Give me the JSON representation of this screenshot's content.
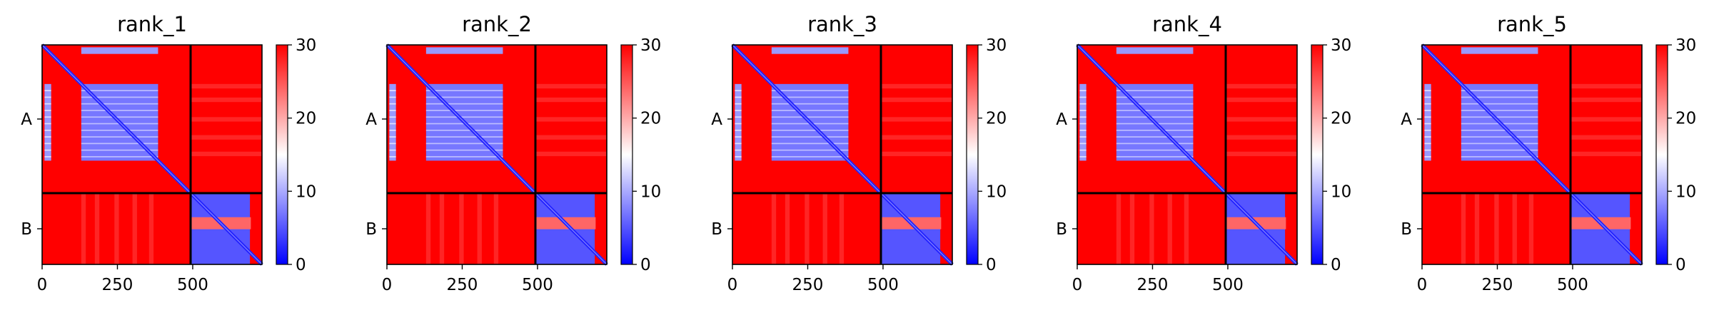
{
  "chart_data": {
    "type": "heatmap",
    "description_of_panels": "five predicted aligned error heatmaps",
    "colormap": {
      "low": "#0000ff",
      "mid": "#ffffff",
      "high": "#ff0000",
      "vmin": 0,
      "vmax": 30
    },
    "colorbar_ticks": [
      "0",
      "10",
      "20",
      "30"
    ],
    "x_ticks": [
      0,
      250,
      500
    ],
    "x_tick_labels": [
      "0",
      "250",
      "500"
    ],
    "chain_labels": [
      "A",
      "B"
    ],
    "chain_lengths": {
      "A": 493,
      "B": 237
    },
    "total_length": 730,
    "panels": [
      {
        "title": "rank_1"
      },
      {
        "title": "rank_2"
      },
      {
        "title": "rank_3"
      },
      {
        "title": "rank_4"
      },
      {
        "title": "rank_5"
      }
    ],
    "pattern": {
      "low_error_blocks": [
        {
          "rows": [
            0,
            493
          ],
          "cols": [
            0,
            493
          ],
          "note": "diagonal"
        },
        {
          "rows": [
            130,
            385
          ],
          "cols": [
            130,
            385
          ],
          "value": 6
        },
        {
          "rows": [
            0,
            30
          ],
          "cols": [
            130,
            385
          ],
          "value": 9
        },
        {
          "rows": [
            130,
            385
          ],
          "cols": [
            0,
            30
          ],
          "value": 9
        },
        {
          "rows": [
            493,
            730
          ],
          "cols": [
            493,
            690
          ],
          "value": 5
        }
      ],
      "background_value": 30
    }
  }
}
